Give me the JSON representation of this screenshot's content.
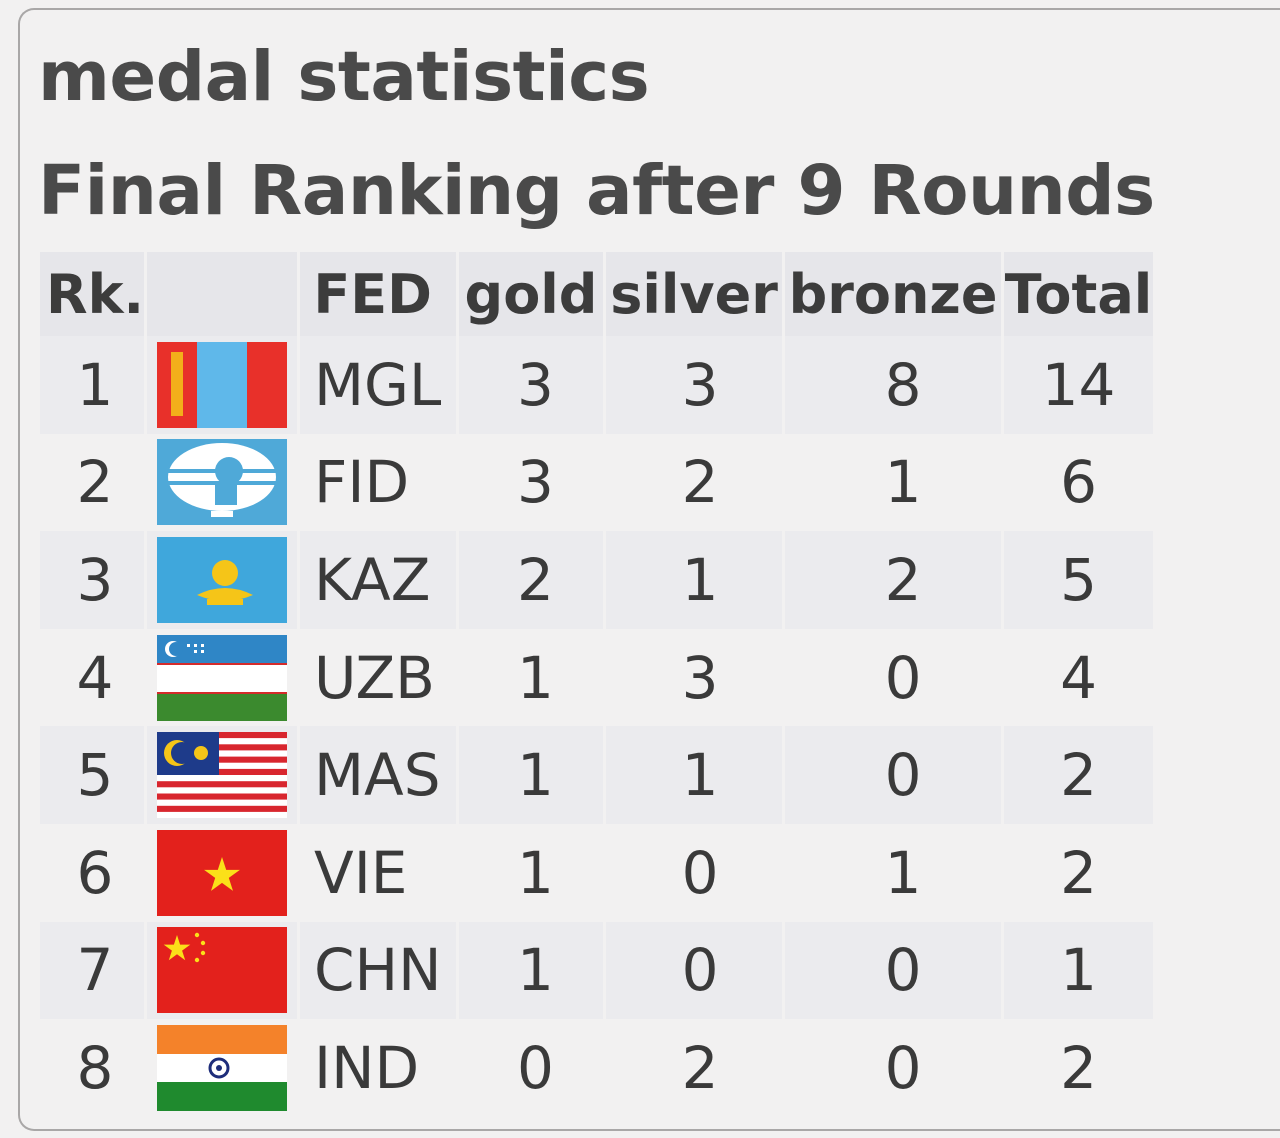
{
  "heading": {
    "title": "medal statistics",
    "subtitle": "Final Ranking after 9 Rounds"
  },
  "table": {
    "columns": [
      "Rk.",
      "",
      "FED",
      "gold",
      "silver",
      "bronze",
      "Total"
    ],
    "rows": [
      {
        "rank": "1",
        "flag": "mongolia-flag-icon",
        "fed": "MGL",
        "gold": "3",
        "silver": "3",
        "bronze": "8",
        "total": "14"
      },
      {
        "rank": "2",
        "flag": "fide-flag-icon",
        "fed": "FID",
        "gold": "3",
        "silver": "2",
        "bronze": "1",
        "total": "6"
      },
      {
        "rank": "3",
        "flag": "kazakhstan-flag-icon",
        "fed": "KAZ",
        "gold": "2",
        "silver": "1",
        "bronze": "2",
        "total": "5"
      },
      {
        "rank": "4",
        "flag": "uzbekistan-flag-icon",
        "fed": "UZB",
        "gold": "1",
        "silver": "3",
        "bronze": "0",
        "total": "4"
      },
      {
        "rank": "5",
        "flag": "malaysia-flag-icon",
        "fed": "MAS",
        "gold": "1",
        "silver": "1",
        "bronze": "0",
        "total": "2"
      },
      {
        "rank": "6",
        "flag": "vietnam-flag-icon",
        "fed": "VIE",
        "gold": "1",
        "silver": "0",
        "bronze": "1",
        "total": "2"
      },
      {
        "rank": "7",
        "flag": "china-flag-icon",
        "fed": "CHN",
        "gold": "1",
        "silver": "0",
        "bronze": "0",
        "total": "1"
      },
      {
        "rank": "8",
        "flag": "india-flag-icon",
        "fed": "IND",
        "gold": "0",
        "silver": "2",
        "bronze": "0",
        "total": "2"
      }
    ]
  },
  "colors": {
    "row_alt": "#ebebee",
    "header_bg": "#e6e6ea",
    "text": "#3a3a3a"
  }
}
